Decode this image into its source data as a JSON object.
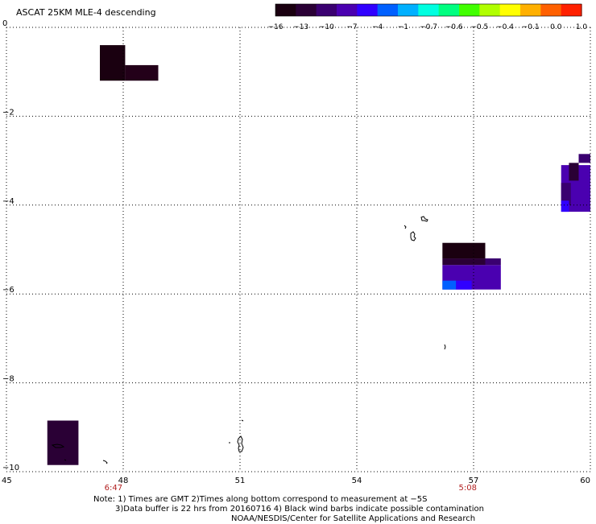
{
  "title": "ASCAT 25KM MLE-4 descending",
  "colorbar": {
    "labels": [
      "−16",
      "−13",
      "−10",
      "−7",
      "−4",
      "−1",
      "−0.7",
      "−0.6",
      "−0.5",
      "−0.4",
      "−0.1",
      "0.0",
      "1.0"
    ],
    "colors": [
      "#1a0010",
      "#2a0035",
      "#3a0070",
      "#4a00b0",
      "#3000ff",
      "#0060ff",
      "#00b0ff",
      "#00ffe0",
      "#00ff80",
      "#40ff00",
      "#b0ff00",
      "#ffff00",
      "#ffb000",
      "#ff6000",
      "#ff2000"
    ]
  },
  "axes": {
    "x_ticks": [
      "45",
      "48",
      "51",
      "54",
      "57",
      "60"
    ],
    "y_ticks": [
      "0",
      "−2",
      "−4",
      "−6",
      "−8",
      "−10"
    ],
    "x_range": [
      45,
      60
    ],
    "y_range": [
      0,
      -10
    ]
  },
  "pass_times": [
    {
      "label": "6:47",
      "lon": 47.75
    },
    {
      "label": "5:08",
      "lon": 56.85
    }
  ],
  "data_cells": [
    {
      "lon0": 47.4,
      "lon1": 48.05,
      "lat0": -0.4,
      "lat1": -1.2,
      "color": "#1a0010"
    },
    {
      "lon0": 48.05,
      "lon1": 48.9,
      "lat0": -0.85,
      "lat1": -1.2,
      "color": "#230019"
    },
    {
      "lon0": 59.25,
      "lon1": 60.0,
      "lat0": -3.1,
      "lat1": -4.15,
      "color": "#4a00b0"
    },
    {
      "lon0": 59.45,
      "lon1": 59.7,
      "lat0": -3.05,
      "lat1": -3.45,
      "color": "#2a0035"
    },
    {
      "lon0": 59.25,
      "lon1": 59.5,
      "lat0": -3.5,
      "lat1": -4.0,
      "color": "#3a0070"
    },
    {
      "lon0": 59.25,
      "lon1": 59.45,
      "lat0": -3.9,
      "lat1": -4.15,
      "color": "#3000ff"
    },
    {
      "lon0": 59.7,
      "lon1": 60.0,
      "lat0": -2.85,
      "lat1": -3.05,
      "color": "#3a0070"
    },
    {
      "lon0": 56.2,
      "lon1": 57.3,
      "lat0": -4.85,
      "lat1": -5.2,
      "color": "#1a0010"
    },
    {
      "lon0": 56.2,
      "lon1": 57.3,
      "lat0": -5.2,
      "lat1": -5.35,
      "color": "#2a0035"
    },
    {
      "lon0": 56.2,
      "lon1": 57.7,
      "lat0": -5.35,
      "lat1": -5.9,
      "color": "#4a00b0"
    },
    {
      "lon0": 56.2,
      "lon1": 56.55,
      "lat0": -5.7,
      "lat1": -5.9,
      "color": "#0060ff"
    },
    {
      "lon0": 56.55,
      "lon1": 56.95,
      "lat0": -5.7,
      "lat1": -5.9,
      "color": "#3000ff"
    },
    {
      "lon0": 57.3,
      "lon1": 57.7,
      "lat0": -5.2,
      "lat1": -5.35,
      "color": "#3a0070"
    },
    {
      "lon0": 46.05,
      "lon1": 46.85,
      "lat0": -8.85,
      "lat1": -9.85,
      "color": "#2a0035"
    }
  ],
  "notes": [
    "Note: 1) Times are GMT 2)Times along bottom correspond to measurement at −5S",
    "3)Data buffer is 22 hrs from 20160716 4) Black wind barbs indicate possible contamination",
    "NOAA/NESDIS/Center for Satellite Applications and Research"
  ]
}
